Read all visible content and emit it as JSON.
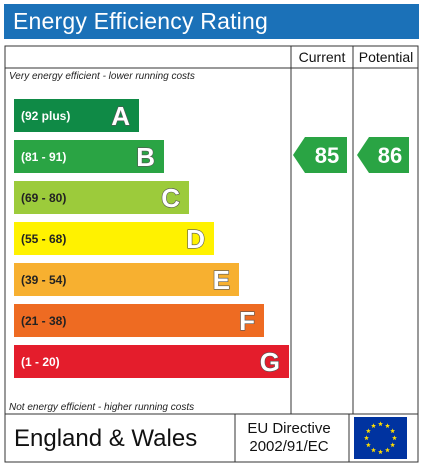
{
  "header": {
    "title": "Energy Efficiency Rating"
  },
  "columns": {
    "current": "Current",
    "potential": "Potential"
  },
  "notes": {
    "top": "Very energy efficient - lower running costs",
    "bottom": "Not energy efficient - higher running costs"
  },
  "footer": {
    "region": "England & Wales",
    "directive_line1": "EU Directive",
    "directive_line2": "2002/91/EC",
    "flag_icon": "eu-flag-icon"
  },
  "chart_data": {
    "type": "bar",
    "bands": [
      {
        "range": "(92 plus)",
        "letter": "A",
        "color": "#0f8a46",
        "rank": 1
      },
      {
        "range": "(81 - 91)",
        "letter": "B",
        "color": "#2aa444",
        "rank": 2
      },
      {
        "range": "(69 - 80)",
        "letter": "C",
        "color": "#9ccb3b",
        "rank": 3
      },
      {
        "range": "(55 - 68)",
        "letter": "D",
        "color": "#fff200",
        "rank": 4
      },
      {
        "range": "(39 - 54)",
        "letter": "E",
        "color": "#f7b030",
        "rank": 5
      },
      {
        "range": "(21 - 38)",
        "letter": "F",
        "color": "#ee6b22",
        "rank": 6
      },
      {
        "range": "(1 - 20)",
        "letter": "G",
        "color": "#e41d2c",
        "rank": 7
      }
    ],
    "current": {
      "value": 85,
      "band": "B",
      "color": "#2aa444"
    },
    "potential": {
      "value": 86,
      "band": "B",
      "color": "#2aa444"
    }
  }
}
